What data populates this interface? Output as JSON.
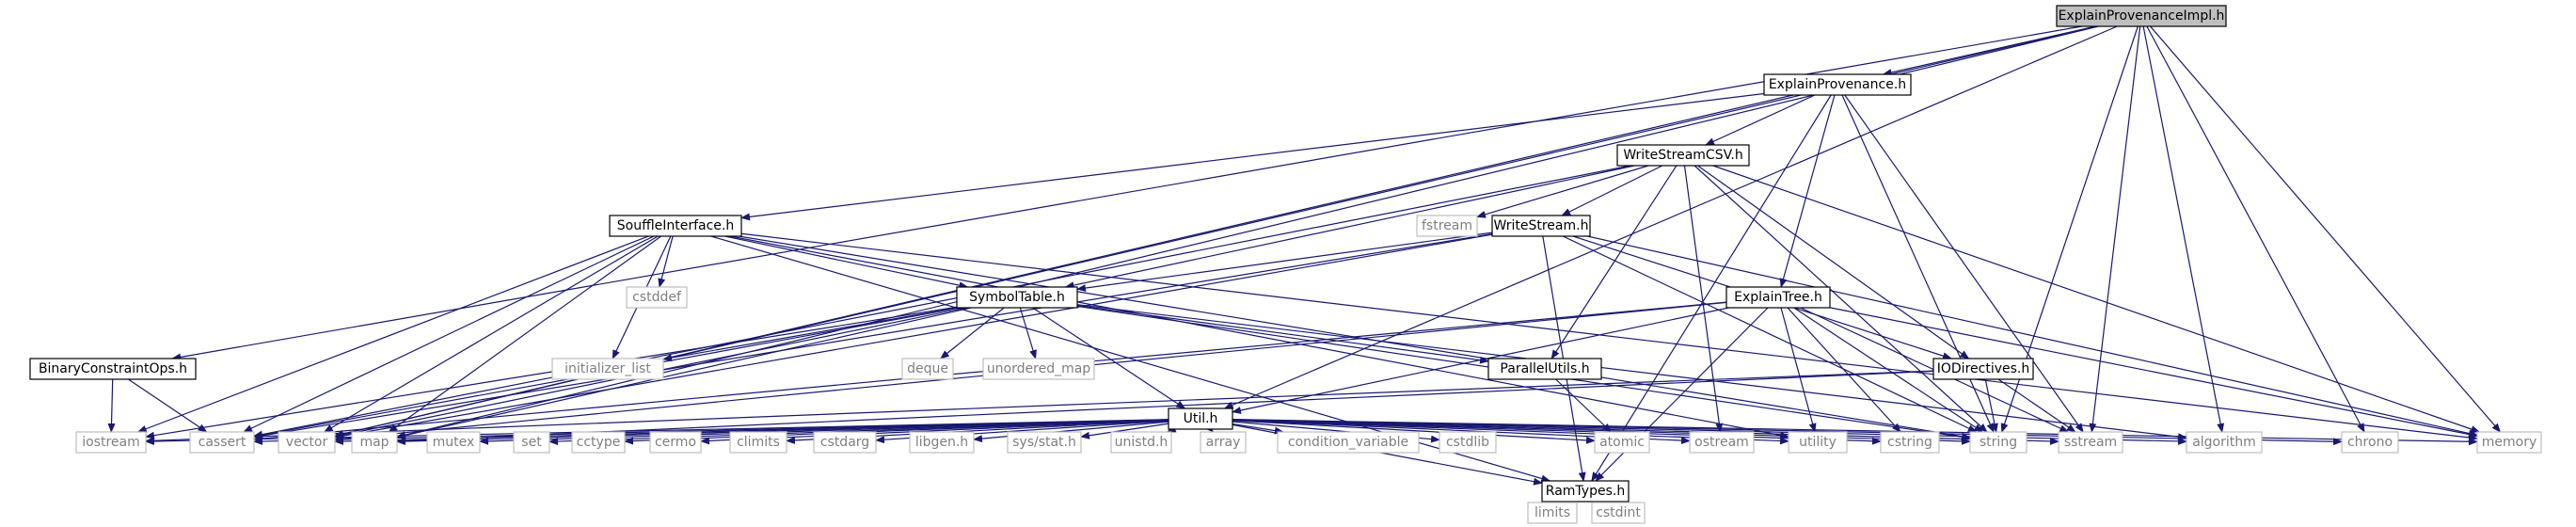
{
  "colors": {
    "edge": "#191970",
    "root_fill": "#bfbfbf",
    "system_text": "#7f7f7f",
    "system_border": "#bfbfbf"
  },
  "nodes": [
    {
      "id": "explainprovenanceimpl",
      "label": "ExplainProvenanceImpl.h",
      "kind": "root"
    },
    {
      "id": "explainprovenance",
      "label": "ExplainProvenance.h",
      "kind": "local"
    },
    {
      "id": "writestreamcsv",
      "label": "WriteStreamCSV.h",
      "kind": "local"
    },
    {
      "id": "souffleinterface",
      "label": "SouffleInterface.h",
      "kind": "local"
    },
    {
      "id": "writestream",
      "label": "WriteStream.h",
      "kind": "local"
    },
    {
      "id": "symboltable",
      "label": "SymbolTable.h",
      "kind": "local"
    },
    {
      "id": "explaintree",
      "label": "ExplainTree.h",
      "kind": "local"
    },
    {
      "id": "binaryconstraintops",
      "label": "BinaryConstraintOps.h",
      "kind": "local"
    },
    {
      "id": "parallelutils",
      "label": "ParallelUtils.h",
      "kind": "local"
    },
    {
      "id": "iodirectives",
      "label": "IODirectives.h",
      "kind": "local"
    },
    {
      "id": "util",
      "label": "Util.h",
      "kind": "local"
    },
    {
      "id": "ramtypes",
      "label": "RamTypes.h",
      "kind": "local"
    },
    {
      "id": "fstream",
      "label": "fstream",
      "kind": "system"
    },
    {
      "id": "cstddef",
      "label": "cstddef",
      "kind": "system"
    },
    {
      "id": "initializer_list",
      "label": "initializer_list",
      "kind": "system"
    },
    {
      "id": "deque",
      "label": "deque",
      "kind": "system"
    },
    {
      "id": "unordered_map",
      "label": "unordered_map",
      "kind": "system"
    },
    {
      "id": "iostream",
      "label": "iostream",
      "kind": "system"
    },
    {
      "id": "cassert",
      "label": "cassert",
      "kind": "system"
    },
    {
      "id": "vector",
      "label": "vector",
      "kind": "system"
    },
    {
      "id": "map",
      "label": "map",
      "kind": "system"
    },
    {
      "id": "mutex",
      "label": "mutex",
      "kind": "system"
    },
    {
      "id": "set",
      "label": "set",
      "kind": "system"
    },
    {
      "id": "cctype",
      "label": "cctype",
      "kind": "system"
    },
    {
      "id": "cermo",
      "label": "cermo",
      "kind": "system"
    },
    {
      "id": "climits",
      "label": "climits",
      "kind": "system"
    },
    {
      "id": "cstdarg",
      "label": "cstdarg",
      "kind": "system"
    },
    {
      "id": "libgen",
      "label": "libgen.h",
      "kind": "system"
    },
    {
      "id": "sysstat",
      "label": "sys/stat.h",
      "kind": "system"
    },
    {
      "id": "unistd",
      "label": "unistd.h",
      "kind": "system"
    },
    {
      "id": "array",
      "label": "array",
      "kind": "system"
    },
    {
      "id": "condition_variable",
      "label": "condition_variable",
      "kind": "system"
    },
    {
      "id": "cstdlib",
      "label": "cstdlib",
      "kind": "system"
    },
    {
      "id": "atomic",
      "label": "atomic",
      "kind": "system"
    },
    {
      "id": "ostream",
      "label": "ostream",
      "kind": "system"
    },
    {
      "id": "utility",
      "label": "utility",
      "kind": "system"
    },
    {
      "id": "cstring",
      "label": "cstring",
      "kind": "system"
    },
    {
      "id": "string",
      "label": "string",
      "kind": "system"
    },
    {
      "id": "sstream",
      "label": "sstream",
      "kind": "system"
    },
    {
      "id": "algorithm",
      "label": "algorithm",
      "kind": "system"
    },
    {
      "id": "chrono",
      "label": "chrono",
      "kind": "system"
    },
    {
      "id": "memory",
      "label": "memory",
      "kind": "system"
    },
    {
      "id": "limits",
      "label": "limits",
      "kind": "system"
    },
    {
      "id": "cstdint",
      "label": "cstdint",
      "kind": "system"
    }
  ],
  "edges": [
    [
      "explainprovenanceimpl",
      "explainprovenance"
    ],
    [
      "explainprovenanceimpl",
      "binaryconstraintops"
    ],
    [
      "explainprovenanceimpl",
      "map"
    ],
    [
      "explainprovenanceimpl",
      "vector"
    ],
    [
      "explainprovenanceimpl",
      "util"
    ],
    [
      "explainprovenanceimpl",
      "string"
    ],
    [
      "explainprovenanceimpl",
      "sstream"
    ],
    [
      "explainprovenanceimpl",
      "algorithm"
    ],
    [
      "explainprovenanceimpl",
      "chrono"
    ],
    [
      "explainprovenanceimpl",
      "memory"
    ],
    [
      "explainprovenance",
      "writestreamcsv"
    ],
    [
      "explainprovenance",
      "souffleinterface"
    ],
    [
      "explainprovenance",
      "explaintree"
    ],
    [
      "explainprovenance",
      "ramtypes"
    ],
    [
      "explainprovenance",
      "string"
    ],
    [
      "explainprovenance",
      "sstream"
    ],
    [
      "explainprovenance",
      "vector"
    ],
    [
      "writestreamcsv",
      "fstream"
    ],
    [
      "writestreamcsv",
      "writestream"
    ],
    [
      "writestreamcsv",
      "symboltable"
    ],
    [
      "writestreamcsv",
      "parallelutils"
    ],
    [
      "writestreamcsv",
      "iodirectives"
    ],
    [
      "writestreamcsv",
      "ostream"
    ],
    [
      "writestreamcsv",
      "string"
    ],
    [
      "writestreamcsv",
      "memory"
    ],
    [
      "writestreamcsv",
      "cassert"
    ],
    [
      "souffleinterface",
      "symboltable"
    ],
    [
      "souffleinterface",
      "ramtypes"
    ],
    [
      "souffleinterface",
      "cstddef"
    ],
    [
      "souffleinterface",
      "initializer_list"
    ],
    [
      "souffleinterface",
      "iostream"
    ],
    [
      "souffleinterface",
      "cassert"
    ],
    [
      "souffleinterface",
      "map"
    ],
    [
      "souffleinterface",
      "vector"
    ],
    [
      "souffleinterface",
      "string"
    ],
    [
      "souffleinterface",
      "utility"
    ],
    [
      "souffleinterface",
      "memory"
    ],
    [
      "writestream",
      "symboltable"
    ],
    [
      "writestream",
      "iodirectives"
    ],
    [
      "writestream",
      "ramtypes"
    ],
    [
      "writestream",
      "cassert"
    ],
    [
      "writestream",
      "string"
    ],
    [
      "writestream",
      "vector"
    ],
    [
      "writestream",
      "memory"
    ],
    [
      "symboltable",
      "util"
    ],
    [
      "symboltable",
      "parallelutils"
    ],
    [
      "symboltable",
      "deque"
    ],
    [
      "symboltable",
      "unordered_map"
    ],
    [
      "symboltable",
      "initializer_list"
    ],
    [
      "symboltable",
      "iostream"
    ],
    [
      "symboltable",
      "cassert"
    ],
    [
      "symboltable",
      "vector"
    ],
    [
      "symboltable",
      "map"
    ],
    [
      "symboltable",
      "string"
    ],
    [
      "symboltable",
      "algorithm"
    ],
    [
      "explaintree",
      "util"
    ],
    [
      "explaintree",
      "ramtypes"
    ],
    [
      "explaintree",
      "cassert"
    ],
    [
      "explaintree",
      "cstring"
    ],
    [
      "explaintree",
      "string"
    ],
    [
      "explaintree",
      "sstream"
    ],
    [
      "explaintree",
      "vector"
    ],
    [
      "explaintree",
      "utility"
    ],
    [
      "explaintree",
      "memory"
    ],
    [
      "binaryconstraintops",
      "iostream"
    ],
    [
      "binaryconstraintops",
      "cassert"
    ],
    [
      "parallelutils",
      "atomic"
    ],
    [
      "iodirectives",
      "iostream"
    ],
    [
      "iodirectives",
      "map"
    ],
    [
      "iodirectives",
      "sstream"
    ],
    [
      "iodirectives",
      "string"
    ],
    [
      "util",
      "ramtypes"
    ],
    [
      "util",
      "iostream"
    ],
    [
      "util",
      "cassert"
    ],
    [
      "util",
      "vector"
    ],
    [
      "util",
      "map"
    ],
    [
      "util",
      "mutex"
    ],
    [
      "util",
      "set"
    ],
    [
      "util",
      "cctype"
    ],
    [
      "util",
      "cermo"
    ],
    [
      "util",
      "climits"
    ],
    [
      "util",
      "cstdarg"
    ],
    [
      "util",
      "libgen"
    ],
    [
      "util",
      "sysstat"
    ],
    [
      "util",
      "unistd"
    ],
    [
      "util",
      "array"
    ],
    [
      "util",
      "condition_variable"
    ],
    [
      "util",
      "cstdlib"
    ],
    [
      "util",
      "atomic"
    ],
    [
      "util",
      "ostream"
    ],
    [
      "util",
      "utility"
    ],
    [
      "util",
      "cstring"
    ],
    [
      "util",
      "string"
    ],
    [
      "util",
      "sstream"
    ],
    [
      "util",
      "algorithm"
    ],
    [
      "util",
      "chrono"
    ],
    [
      "util",
      "memory"
    ],
    [
      "ramtypes",
      "limits"
    ],
    [
      "ramtypes",
      "cstdint"
    ]
  ]
}
